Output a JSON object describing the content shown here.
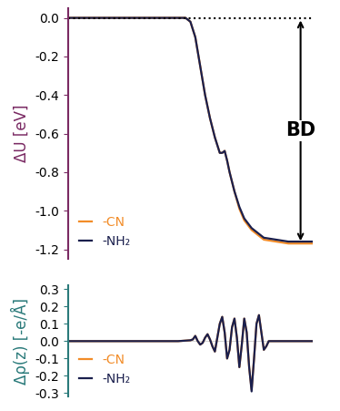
{
  "chart_data": [
    {
      "type": "line",
      "y_label": "ΔU [eV]",
      "annotations": [
        "BD"
      ],
      "x": [
        0,
        10,
        20,
        30,
        40,
        48,
        50,
        52,
        54,
        56,
        58,
        60,
        62,
        63,
        64,
        65,
        66,
        68,
        70,
        72,
        75,
        78,
        80,
        85,
        90,
        95,
        100
      ],
      "series": [
        {
          "name": "-CN",
          "color": "#f28c28",
          "values": [
            0,
            0,
            0,
            0,
            0,
            0,
            -0.02,
            -0.1,
            -0.25,
            -0.4,
            -0.52,
            -0.62,
            -0.7,
            -0.7,
            -0.69,
            -0.74,
            -0.8,
            -0.9,
            -0.99,
            -1.05,
            -1.1,
            -1.13,
            -1.15,
            -1.16,
            -1.17,
            -1.17,
            -1.17
          ]
        },
        {
          "name": "-NH₂",
          "color": "#1a1f4d",
          "values": [
            0,
            0,
            0,
            0,
            0,
            0,
            -0.02,
            -0.1,
            -0.25,
            -0.4,
            -0.52,
            -0.62,
            -0.7,
            -0.7,
            -0.69,
            -0.74,
            -0.8,
            -0.9,
            -0.98,
            -1.04,
            -1.09,
            -1.12,
            -1.14,
            -1.15,
            -1.16,
            -1.16,
            -1.16
          ]
        }
      ],
      "xlim": [
        0,
        100
      ],
      "ylim": [
        -1.25,
        0.05
      ],
      "yticks": [
        0.0,
        -0.2,
        -0.4,
        -0.6,
        -0.8,
        -1.0,
        -1.2
      ],
      "tick_labels": "y",
      "legend": "lower left",
      "color": "#7a2a63"
    },
    {
      "type": "line",
      "y_label": "Δρ(z) [-e/Å]",
      "x": [
        0,
        10,
        20,
        30,
        40,
        45,
        50,
        51,
        52,
        53,
        54,
        55,
        56,
        57,
        58,
        59,
        60,
        61,
        62,
        63,
        64,
        65,
        66,
        67,
        68,
        69,
        70,
        71,
        72,
        73,
        74,
        75,
        76,
        77,
        78,
        79,
        80,
        81,
        82,
        84,
        88,
        95,
        100
      ],
      "series": [
        {
          "name": "-CN",
          "color": "#f28c28",
          "values": [
            0,
            0,
            0,
            0,
            0,
            0,
            0.005,
            0.01,
            0.03,
            0.0,
            -0.02,
            -0.01,
            0.02,
            0.04,
            0.01,
            -0.03,
            -0.06,
            0.02,
            0.1,
            0.14,
            0.05,
            -0.1,
            -0.05,
            0.08,
            0.13,
            0.02,
            -0.15,
            -0.02,
            0.13,
            0.05,
            -0.15,
            -0.28,
            -0.1,
            0.1,
            0.15,
            0.05,
            -0.05,
            -0.03,
            0.0,
            0.0,
            0.0,
            0.0,
            0.0
          ]
        },
        {
          "name": "-NH₂",
          "color": "#1a1f4d",
          "values": [
            0,
            0,
            0,
            0,
            0,
            0,
            0.005,
            0.01,
            0.03,
            0.0,
            -0.02,
            -0.01,
            0.02,
            0.04,
            0.01,
            -0.03,
            -0.06,
            0.02,
            0.1,
            0.14,
            0.05,
            -0.1,
            -0.05,
            0.08,
            0.13,
            0.02,
            -0.15,
            -0.02,
            0.13,
            0.05,
            -0.15,
            -0.29,
            -0.1,
            0.1,
            0.15,
            0.05,
            -0.05,
            -0.03,
            0.0,
            0.0,
            0.0,
            0.0,
            0.0
          ]
        }
      ],
      "xlim": [
        0,
        100
      ],
      "ylim": [
        -0.32,
        0.32
      ],
      "yticks": [
        0.3,
        0.2,
        0.1,
        0.0,
        -0.1,
        -0.2,
        -0.3
      ],
      "tick_labels": "y",
      "legend": "lower left",
      "color": "#2a7a7a"
    }
  ]
}
